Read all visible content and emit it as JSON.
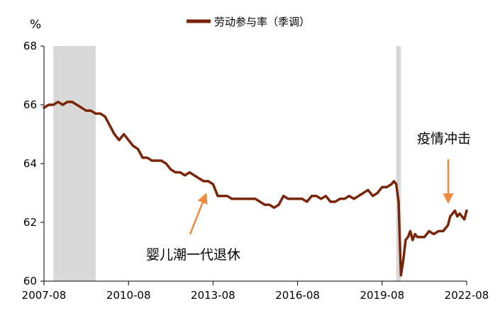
{
  "chart_data": {
    "type": "line",
    "ylabel": "%",
    "ylim": [
      60,
      68
    ],
    "yticks": [
      60,
      62,
      64,
      66,
      68
    ],
    "xlim": [
      "2007-08",
      "2022-08"
    ],
    "xticks": [
      "2007-08",
      "2010-08",
      "2013-08",
      "2016-08",
      "2019-08",
      "2022-08"
    ],
    "legend_position": "top-center",
    "series": [
      {
        "name": "劳动参与率（季调）",
        "color": "#7a2508",
        "points": [
          [
            "2007-08",
            65.9
          ],
          [
            "2007-10",
            66.0
          ],
          [
            "2007-12",
            66.0
          ],
          [
            "2008-02",
            66.1
          ],
          [
            "2008-04",
            66.0
          ],
          [
            "2008-06",
            66.1
          ],
          [
            "2008-08",
            66.1
          ],
          [
            "2008-10",
            66.0
          ],
          [
            "2008-12",
            65.9
          ],
          [
            "2009-02",
            65.8
          ],
          [
            "2009-04",
            65.8
          ],
          [
            "2009-06",
            65.7
          ],
          [
            "2009-08",
            65.7
          ],
          [
            "2009-10",
            65.6
          ],
          [
            "2009-12",
            65.3
          ],
          [
            "2010-02",
            65.0
          ],
          [
            "2010-04",
            64.8
          ],
          [
            "2010-06",
            65.0
          ],
          [
            "2010-08",
            64.8
          ],
          [
            "2010-10",
            64.6
          ],
          [
            "2010-12",
            64.5
          ],
          [
            "2011-02",
            64.2
          ],
          [
            "2011-04",
            64.2
          ],
          [
            "2011-06",
            64.1
          ],
          [
            "2011-08",
            64.1
          ],
          [
            "2011-10",
            64.1
          ],
          [
            "2011-12",
            64.0
          ],
          [
            "2012-02",
            63.8
          ],
          [
            "2012-04",
            63.7
          ],
          [
            "2012-06",
            63.7
          ],
          [
            "2012-08",
            63.6
          ],
          [
            "2012-10",
            63.7
          ],
          [
            "2012-12",
            63.6
          ],
          [
            "2013-02",
            63.5
          ],
          [
            "2013-04",
            63.4
          ],
          [
            "2013-06",
            63.4
          ],
          [
            "2013-08",
            63.3
          ],
          [
            "2013-10",
            62.9
          ],
          [
            "2013-12",
            62.9
          ],
          [
            "2014-02",
            62.9
          ],
          [
            "2014-04",
            62.8
          ],
          [
            "2014-06",
            62.8
          ],
          [
            "2014-08",
            62.8
          ],
          [
            "2014-10",
            62.8
          ],
          [
            "2014-12",
            62.8
          ],
          [
            "2015-02",
            62.8
          ],
          [
            "2015-04",
            62.7
          ],
          [
            "2015-06",
            62.6
          ],
          [
            "2015-08",
            62.6
          ],
          [
            "2015-10",
            62.5
          ],
          [
            "2015-12",
            62.6
          ],
          [
            "2016-02",
            62.9
          ],
          [
            "2016-04",
            62.8
          ],
          [
            "2016-06",
            62.8
          ],
          [
            "2016-08",
            62.8
          ],
          [
            "2016-10",
            62.8
          ],
          [
            "2016-12",
            62.7
          ],
          [
            "2017-02",
            62.9
          ],
          [
            "2017-04",
            62.9
          ],
          [
            "2017-06",
            62.8
          ],
          [
            "2017-08",
            62.9
          ],
          [
            "2017-10",
            62.7
          ],
          [
            "2017-12",
            62.7
          ],
          [
            "2018-02",
            62.8
          ],
          [
            "2018-04",
            62.8
          ],
          [
            "2018-06",
            62.9
          ],
          [
            "2018-08",
            62.8
          ],
          [
            "2018-10",
            62.9
          ],
          [
            "2018-12",
            63.0
          ],
          [
            "2019-02",
            63.1
          ],
          [
            "2019-04",
            62.9
          ],
          [
            "2019-06",
            63.0
          ],
          [
            "2019-08",
            63.2
          ],
          [
            "2019-10",
            63.2
          ],
          [
            "2019-12",
            63.3
          ],
          [
            "2020-01",
            63.4
          ],
          [
            "2020-02",
            63.3
          ],
          [
            "2020-03",
            62.7
          ],
          [
            "2020-04",
            60.2
          ],
          [
            "2020-05",
            60.7
          ],
          [
            "2020-06",
            61.4
          ],
          [
            "2020-07",
            61.5
          ],
          [
            "2020-08",
            61.7
          ],
          [
            "2020-09",
            61.4
          ],
          [
            "2020-10",
            61.6
          ],
          [
            "2020-11",
            61.5
          ],
          [
            "2020-12",
            61.5
          ],
          [
            "2021-02",
            61.5
          ],
          [
            "2021-04",
            61.7
          ],
          [
            "2021-06",
            61.6
          ],
          [
            "2021-08",
            61.7
          ],
          [
            "2021-10",
            61.7
          ],
          [
            "2021-12",
            61.9
          ],
          [
            "2022-01",
            62.2
          ],
          [
            "2022-02",
            62.3
          ],
          [
            "2022-03",
            62.4
          ],
          [
            "2022-04",
            62.2
          ],
          [
            "2022-05",
            62.3
          ],
          [
            "2022-06",
            62.2
          ],
          [
            "2022-07",
            62.1
          ],
          [
            "2022-08",
            62.4
          ]
        ]
      }
    ],
    "shaded_periods": [
      {
        "start": "2007-12",
        "end": "2009-06",
        "color": "#d8d8d8"
      },
      {
        "start": "2020-02",
        "end": "2020-04",
        "color": "#d8d8d8"
      }
    ],
    "annotations": [
      {
        "text": "婴儿潮一代退休",
        "arrow_color": "#f08a3c",
        "points_to": [
          "2013-08",
          63.3
        ]
      },
      {
        "text": "疫情冲击",
        "arrow_color": "#f08a3c",
        "points_to": [
          "2022-02",
          62.6
        ]
      }
    ]
  }
}
